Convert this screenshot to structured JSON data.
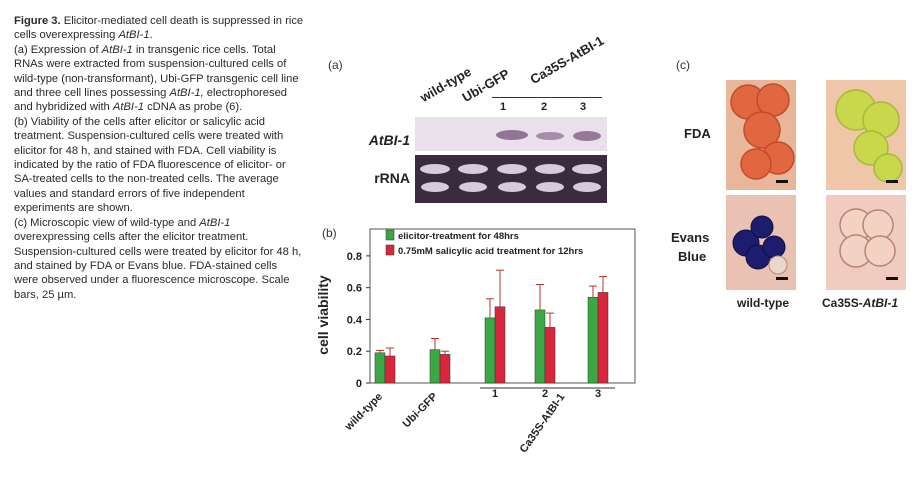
{
  "caption": {
    "figure_label": "Figure 3.",
    "title_a": " Elicitor-mediated cell death is suppressed in rice cells overexpressing ",
    "title_gene": "AtBI-1",
    "title_end": ".",
    "a_1": "(a) Expression of ",
    "a_gene": "AtBI-1",
    "a_2": " in transgenic rice cells. Total RNAs were extracted from suspension-cultured cells of wild-type (non-transformant), Ubi-GFP transgenic cell line and three cell lines possessing ",
    "a_gene2": "AtBI-1,",
    "a_3": " electrophoresed and hybridized with ",
    "a_gene3": "AtBI-1",
    "a_4": " cDNA as probe (6).",
    "b": "(b) Viability of the cells after elicitor or salicylic acid treatment. Suspension-cultured cells were treated with elicitor for 48 h, and stained with FDA. Cell viability is indicated by the ratio of FDA fluorescence of elicitor- or SA-treated cells to the non-treated cells. The average values and standard errors of five independent experiments are shown.",
    "c_1": "(c) Microscopic view of wild-type and ",
    "c_gene": "AtBI-1",
    "c_2": " overexpressing cells after the elicitor treatment. Suspension-cultured cells were treated by elicitor for 48 h, and stained by FDA or Evans blue. FDA-stained cells were observed under a fluorescence microscope. Scale bars, 25 µm."
  },
  "panel_a": {
    "label": "(a)",
    "lanes": [
      "wild-type",
      "Ubi-GFP",
      "Ca35S-AtBI-1"
    ],
    "sublanes": [
      "1",
      "2",
      "3"
    ],
    "rows": [
      "AtBI-1",
      "rRNA"
    ]
  },
  "panel_c": {
    "label": "(c)",
    "rows": [
      "FDA",
      "Evans",
      "Blue"
    ],
    "cols": [
      "wild-type",
      "Ca35S-",
      "AtBI-1"
    ]
  },
  "chart_data": {
    "type": "bar",
    "panel_label": "(b)",
    "categories": [
      "wild-type",
      "Ubi-GFP",
      "1",
      "2",
      "3"
    ],
    "group_label": "Ca35S-AtBI-1",
    "ylabel": "cell viability",
    "ylim": [
      0,
      0.9
    ],
    "yticks": [
      "0",
      "0.2",
      "0.4",
      "0.6",
      "0.8"
    ],
    "series": [
      {
        "name": "elicitor-treatment for 48hrs",
        "color": "#3aa845",
        "values": [
          0.19,
          0.21,
          0.41,
          0.46,
          0.54
        ],
        "errors": [
          0.015,
          0.07,
          0.12,
          0.16,
          0.07
        ]
      },
      {
        "name": "0.75mM salicylic acid treatment for 12hrs",
        "color": "#d9263d",
        "values": [
          0.17,
          0.18,
          0.48,
          0.35,
          0.57
        ],
        "errors": [
          0.05,
          0.02,
          0.23,
          0.09,
          0.1
        ]
      }
    ]
  }
}
